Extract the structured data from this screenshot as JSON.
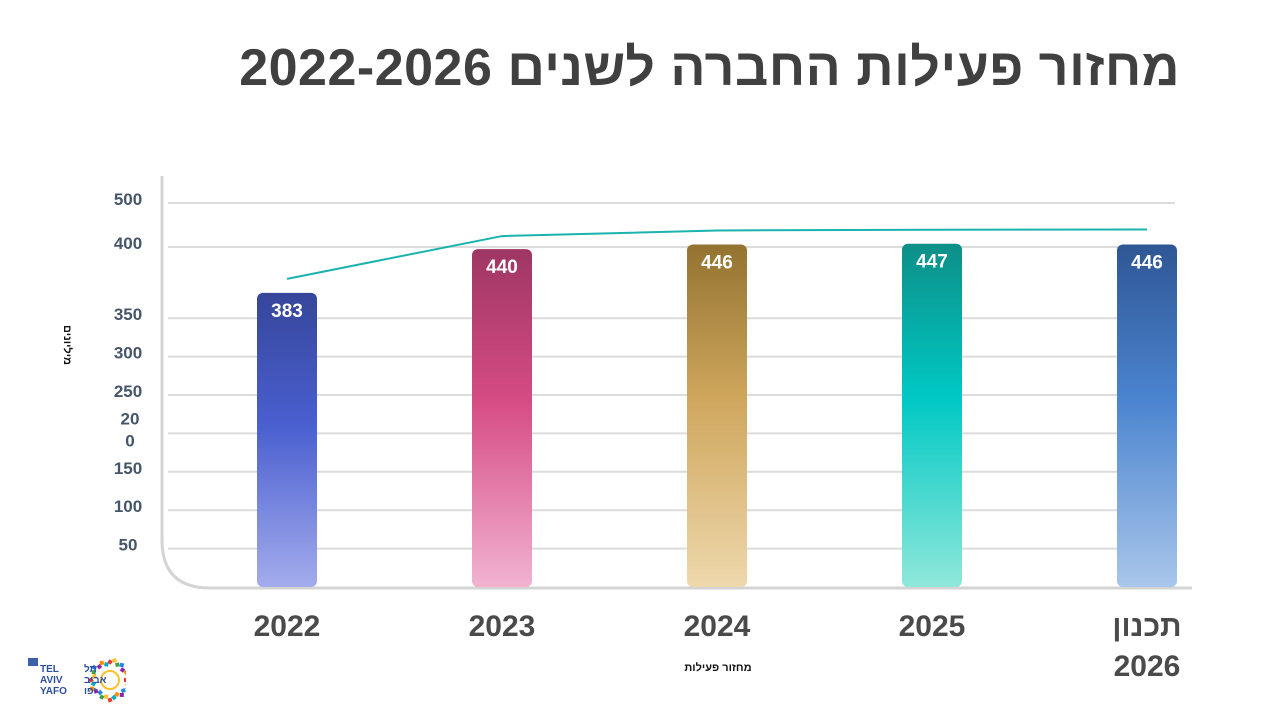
{
  "title": "מחזור פעילות החברה לשנים 2022-2026",
  "chart_data": {
    "type": "bar",
    "title": "מחזור פעילות החברה לשנים 2022-2026",
    "categories": [
      "2022",
      "2023",
      "2024",
      "2025",
      "תכנון 2026"
    ],
    "category_lines": [
      [
        "2022"
      ],
      [
        "2023"
      ],
      [
        "2024"
      ],
      [
        "2025"
      ],
      [
        "תכנון",
        "2026"
      ]
    ],
    "values": [
      383,
      440,
      446,
      447,
      446
    ],
    "bar_colors": [
      [
        "#36469a",
        "#4a5fd0",
        "#a3acec"
      ],
      [
        "#9e3663",
        "#d64c84",
        "#f2b3cf"
      ],
      [
        "#937330",
        "#cfa65c",
        "#eed8ac"
      ],
      [
        "#0d8f88",
        "#00c8c4",
        "#8fe8da"
      ],
      [
        "#2f5694",
        "#4a84cf",
        "#a9c6ea"
      ]
    ],
    "trend_line": {
      "color": "#1ab3ad"
    },
    "ylabel": "מיליונים",
    "xlabel": "מחזור פעילות",
    "ylim": [
      0,
      500
    ],
    "yticks": [
      {
        "value": 50,
        "label": "50"
      },
      {
        "value": 100,
        "label": "100"
      },
      {
        "value": 150,
        "label": "150"
      },
      {
        "value": 200,
        "label": "20\n0"
      },
      {
        "value": 250,
        "label": "250"
      },
      {
        "value": 300,
        "label": "300"
      },
      {
        "value": 350,
        "label": "350"
      },
      {
        "value": 400,
        "label": "400"
      },
      {
        "value": 500,
        "label": "500"
      }
    ],
    "grid": true,
    "legend": "none"
  },
  "logo": {
    "lines": [
      "TEL",
      "AVIV",
      "YAFO"
    ],
    "hebrew_lines": [
      "תל",
      "אביב",
      "יפו"
    ],
    "colors": [
      "#e53935",
      "#fbc02d",
      "#43a047",
      "#1e88e5",
      "#8e24aa",
      "#fb8c00",
      "#00acc1"
    ]
  }
}
